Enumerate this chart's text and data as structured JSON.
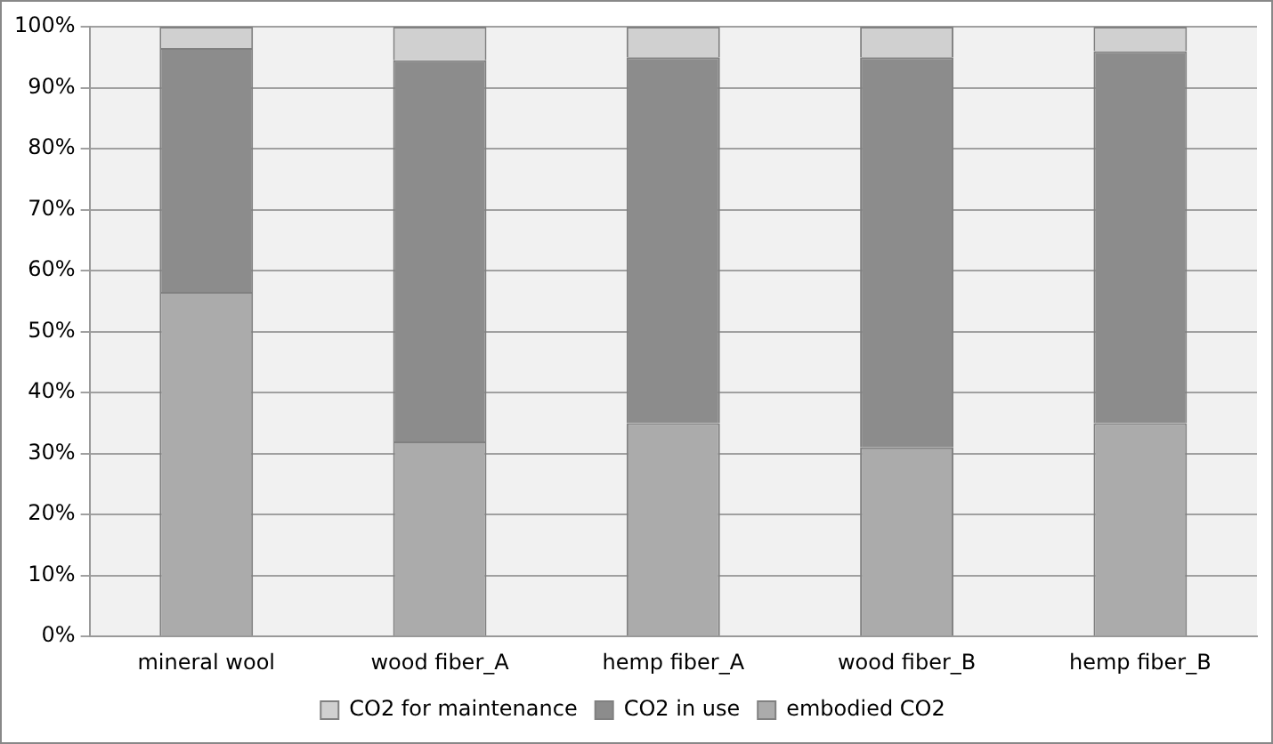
{
  "chart_data": {
    "type": "bar",
    "stacked": true,
    "categories": [
      "mineral wool",
      "wood fiber_A",
      "hemp fiber_A",
      "wood fiber_B",
      "hemp fiber_B"
    ],
    "series": [
      {
        "name": "embodied CO2",
        "color": "#ababab",
        "values": [
          56.5,
          32,
          35,
          31,
          35
        ]
      },
      {
        "name": "CO2 in use",
        "color": "#8c8c8c",
        "values": [
          40,
          62.5,
          60,
          64,
          61
        ]
      },
      {
        "name": "CO2 for maintenance",
        "color": "#d0d0d0",
        "values": [
          3.5,
          5.5,
          5,
          5,
          4
        ]
      }
    ],
    "ylim": [
      0,
      100
    ],
    "yticks": [
      {
        "value": 0,
        "label": "0%"
      },
      {
        "value": 10,
        "label": "10%"
      },
      {
        "value": 20,
        "label": "20%"
      },
      {
        "value": 30,
        "label": "30%"
      },
      {
        "value": 40,
        "label": "40%"
      },
      {
        "value": 50,
        "label": "50%"
      },
      {
        "value": 60,
        "label": "60%"
      },
      {
        "value": 70,
        "label": "70%"
      },
      {
        "value": 80,
        "label": "80%"
      },
      {
        "value": 90,
        "label": "90%"
      },
      {
        "value": 100,
        "label": "100%"
      }
    ],
    "grid": "y",
    "legend": "bottom"
  }
}
